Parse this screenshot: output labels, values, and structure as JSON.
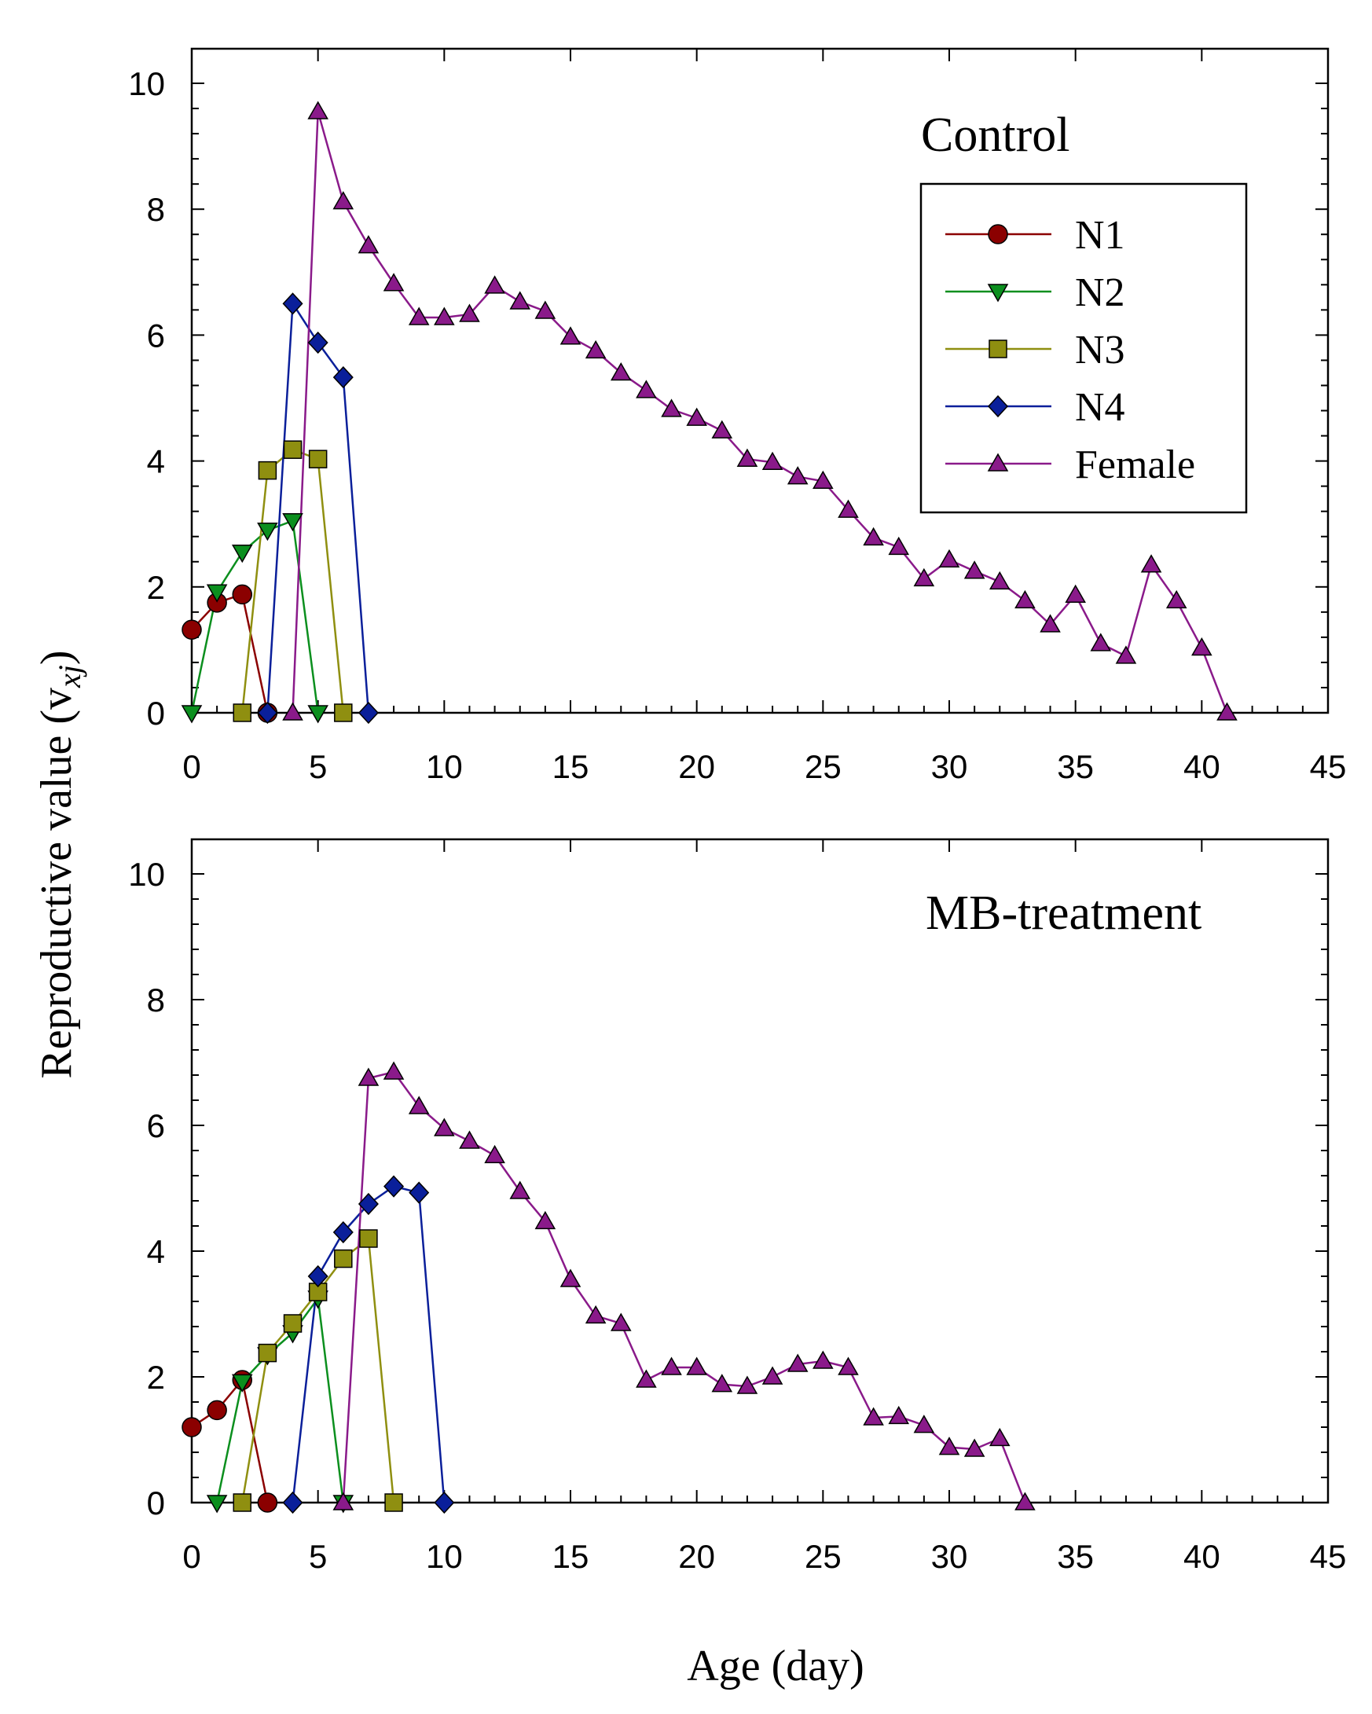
{
  "figure": {
    "ylabel": "Reproductive value (v",
    "ylabel_sub": "xj",
    "ylabel_close": ")",
    "xlabel": "Age (day)"
  },
  "legend": [
    {
      "name": "N1",
      "marker": "circle",
      "color": "#8B0000"
    },
    {
      "name": "N2",
      "marker": "triangle-down",
      "color": "#0B8F1E"
    },
    {
      "name": "N3",
      "marker": "square",
      "color": "#8F8F10"
    },
    {
      "name": "N4",
      "marker": "diamond",
      "color": "#0A1F9A"
    },
    {
      "name": "Female",
      "marker": "triangle-up",
      "color": "#8A1A8A"
    }
  ],
  "chart_data": [
    {
      "type": "line",
      "panel_label": "Control",
      "xlim": [
        0,
        45
      ],
      "ylim": [
        0,
        10
      ],
      "xticks": [
        0,
        5,
        10,
        15,
        20,
        25,
        30,
        35,
        40,
        45
      ],
      "yticks": [
        0,
        2,
        4,
        6,
        8,
        10
      ],
      "legend_position": "upper-right",
      "series": [
        {
          "name": "N1",
          "x": [
            0,
            1,
            2,
            3
          ],
          "y": [
            1.32,
            1.75,
            1.88,
            0
          ]
        },
        {
          "name": "N2",
          "x": [
            0,
            1,
            2,
            3,
            4,
            5
          ],
          "y": [
            0,
            1.92,
            2.55,
            2.9,
            3.05,
            0
          ]
        },
        {
          "name": "N3",
          "x": [
            2,
            3,
            4,
            5,
            6
          ],
          "y": [
            0,
            3.85,
            4.18,
            4.03,
            0
          ]
        },
        {
          "name": "N4",
          "x": [
            3,
            4,
            5,
            6,
            7
          ],
          "y": [
            0,
            6.5,
            5.88,
            5.33,
            0
          ]
        },
        {
          "name": "Female",
          "x": [
            4,
            5,
            6,
            7,
            8,
            9,
            10,
            11,
            12,
            13,
            14,
            15,
            16,
            17,
            18,
            19,
            20,
            21,
            22,
            23,
            24,
            25,
            26,
            27,
            28,
            29,
            30,
            31,
            32,
            33,
            34,
            35,
            36,
            37,
            38,
            39,
            40,
            41
          ],
          "y": [
            0,
            9.55,
            8.12,
            7.42,
            6.82,
            6.28,
            6.28,
            6.33,
            6.78,
            6.53,
            6.38,
            5.97,
            5.75,
            5.4,
            5.12,
            4.82,
            4.68,
            4.48,
            4.03,
            3.98,
            3.75,
            3.68,
            3.22,
            2.78,
            2.63,
            2.13,
            2.43,
            2.25,
            2.08,
            1.78,
            1.4,
            1.87,
            1.1,
            0.9,
            2.35,
            1.78,
            1.03,
            0
          ]
        }
      ]
    },
    {
      "type": "line",
      "panel_label": "MB-treatment",
      "xlim": [
        0,
        45
      ],
      "ylim": [
        0,
        10
      ],
      "xticks": [
        0,
        5,
        10,
        15,
        20,
        25,
        30,
        35,
        40,
        45
      ],
      "yticks": [
        0,
        2,
        4,
        6,
        8,
        10
      ],
      "series": [
        {
          "name": "N1",
          "x": [
            0,
            1,
            2,
            3
          ],
          "y": [
            1.2,
            1.47,
            1.95,
            0
          ]
        },
        {
          "name": "N2",
          "x": [
            1,
            2,
            3,
            4,
            5,
            6
          ],
          "y": [
            0,
            1.92,
            2.35,
            2.7,
            3.25,
            0
          ]
        },
        {
          "name": "N3",
          "x": [
            2,
            3,
            4,
            5,
            6,
            7,
            8
          ],
          "y": [
            0,
            2.38,
            2.85,
            3.35,
            3.88,
            4.2,
            0
          ]
        },
        {
          "name": "N4",
          "x": [
            4,
            5,
            6,
            7,
            8,
            9,
            10
          ],
          "y": [
            0,
            3.6,
            4.3,
            4.75,
            5.03,
            4.93,
            0
          ]
        },
        {
          "name": "Female",
          "x": [
            6,
            7,
            8,
            9,
            10,
            11,
            12,
            13,
            14,
            15,
            16,
            17,
            18,
            19,
            20,
            21,
            22,
            23,
            24,
            25,
            26,
            27,
            28,
            29,
            30,
            31,
            32,
            33
          ],
          "y": [
            0,
            6.75,
            6.85,
            6.3,
            5.95,
            5.75,
            5.52,
            4.95,
            4.47,
            3.55,
            2.97,
            2.85,
            1.95,
            2.15,
            2.15,
            1.88,
            1.85,
            2.0,
            2.2,
            2.25,
            2.15,
            1.35,
            1.37,
            1.23,
            0.88,
            0.85,
            1.02,
            0
          ]
        }
      ]
    }
  ]
}
